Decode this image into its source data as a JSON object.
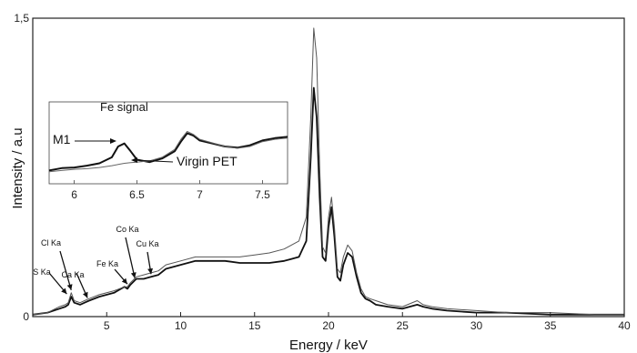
{
  "chart_data": {
    "type": "line",
    "xlabel": "Energy / keV",
    "ylabel": "Intensity / a.u",
    "xlim": [
      0,
      40
    ],
    "ylim": [
      0,
      1.5
    ],
    "x_ticks": [
      "5",
      "10",
      "15",
      "20",
      "25",
      "30",
      "35",
      "40"
    ],
    "y_ticks": [
      "0",
      "1,5"
    ],
    "grid": false,
    "series": [
      {
        "color": "#111111",
        "x": [
          0,
          1,
          1.8,
          2.2,
          2.4,
          2.6,
          2.8,
          3.2,
          3.5,
          3.8,
          4.5,
          5.5,
          6.2,
          6.4,
          6.6,
          7.0,
          7.5,
          8.0,
          8.5,
          9.0,
          10,
          11,
          12,
          13,
          14,
          15,
          16,
          17,
          17.5,
          18.0,
          18.5,
          18.8,
          19.0,
          19.2,
          19.4,
          19.6,
          19.8,
          20.0,
          20.2,
          20.4,
          20.6,
          20.8,
          21.0,
          21.3,
          21.6,
          21.9,
          22.2,
          22.5,
          22.8,
          23.2,
          24,
          25,
          26,
          26.4,
          27,
          28,
          30,
          32,
          35,
          38,
          40
        ],
        "y": [
          0.01,
          0.02,
          0.04,
          0.05,
          0.06,
          0.1,
          0.07,
          0.06,
          0.07,
          0.08,
          0.1,
          0.12,
          0.15,
          0.14,
          0.16,
          0.19,
          0.19,
          0.2,
          0.21,
          0.24,
          0.26,
          0.28,
          0.28,
          0.28,
          0.27,
          0.27,
          0.27,
          0.28,
          0.29,
          0.3,
          0.38,
          0.8,
          1.15,
          1.0,
          0.6,
          0.3,
          0.28,
          0.45,
          0.55,
          0.4,
          0.2,
          0.18,
          0.26,
          0.32,
          0.3,
          0.2,
          0.12,
          0.09,
          0.08,
          0.06,
          0.05,
          0.04,
          0.06,
          0.05,
          0.04,
          0.03,
          0.02,
          0.02,
          0.01,
          0.01,
          0.01
        ]
      },
      {
        "color": "#555555",
        "x": [
          0,
          1,
          1.8,
          2.2,
          2.4,
          2.6,
          2.8,
          3.2,
          3.5,
          3.8,
          4.5,
          5.5,
          6.2,
          6.4,
          6.6,
          7.0,
          7.5,
          8.0,
          8.5,
          9.0,
          10,
          11,
          12,
          13,
          14,
          15,
          16,
          17,
          17.5,
          18.0,
          18.5,
          18.8,
          19.0,
          19.2,
          19.4,
          19.6,
          19.8,
          20.0,
          20.2,
          20.4,
          20.6,
          20.8,
          21.0,
          21.3,
          21.6,
          21.9,
          22.2,
          22.5,
          22.8,
          23.2,
          24,
          25,
          26,
          26.4,
          27,
          28,
          30,
          32,
          35,
          38,
          40
        ],
        "y": [
          0.01,
          0.02,
          0.05,
          0.06,
          0.07,
          0.12,
          0.08,
          0.07,
          0.08,
          0.09,
          0.11,
          0.13,
          0.15,
          0.15,
          0.17,
          0.2,
          0.21,
          0.22,
          0.23,
          0.26,
          0.28,
          0.3,
          0.3,
          0.3,
          0.3,
          0.31,
          0.32,
          0.34,
          0.36,
          0.38,
          0.5,
          1.0,
          1.45,
          1.3,
          0.75,
          0.35,
          0.32,
          0.5,
          0.6,
          0.45,
          0.24,
          0.22,
          0.3,
          0.36,
          0.33,
          0.22,
          0.14,
          0.1,
          0.09,
          0.08,
          0.06,
          0.05,
          0.08,
          0.06,
          0.05,
          0.04,
          0.03,
          0.02,
          0.02,
          0.01,
          0.01
        ]
      }
    ],
    "annotations": [
      {
        "text": "S Ka",
        "x": 2.3,
        "y": 0.1
      },
      {
        "text": "Cl Ka",
        "x": 2.6,
        "y": 0.12
      },
      {
        "text": "Ca Ka",
        "x": 3.7,
        "y": 0.08
      },
      {
        "text": "Fe Ka",
        "x": 6.4,
        "y": 0.15
      },
      {
        "text": "Co Ka",
        "x": 6.9,
        "y": 0.18
      },
      {
        "text": "Cu Ka",
        "x": 8.0,
        "y": 0.2
      }
    ],
    "inset": {
      "title": "Fe signal",
      "xlim": [
        5.8,
        7.7
      ],
      "x_ticks": [
        "6",
        "6.5",
        "7",
        "7.5"
      ],
      "series": [
        {
          "name": "M1",
          "x": [
            5.8,
            5.9,
            6.0,
            6.1,
            6.2,
            6.3,
            6.35,
            6.4,
            6.45,
            6.5,
            6.6,
            6.7,
            6.8,
            6.85,
            6.9,
            6.95,
            7.0,
            7.1,
            7.2,
            7.3,
            7.4,
            7.5,
            7.6,
            7.7
          ],
          "y": [
            0.1,
            0.14,
            0.15,
            0.18,
            0.22,
            0.32,
            0.5,
            0.55,
            0.42,
            0.28,
            0.24,
            0.3,
            0.42,
            0.58,
            0.72,
            0.68,
            0.6,
            0.55,
            0.5,
            0.48,
            0.52,
            0.6,
            0.64,
            0.66
          ]
        },
        {
          "name": "Virgin PET",
          "x": [
            5.8,
            5.9,
            6.0,
            6.1,
            6.2,
            6.3,
            6.35,
            6.4,
            6.45,
            6.5,
            6.6,
            6.7,
            6.8,
            6.85,
            6.9,
            6.95,
            7.0,
            7.1,
            7.2,
            7.3,
            7.4,
            7.5,
            7.6,
            7.7
          ],
          "y": [
            0.08,
            0.1,
            0.12,
            0.13,
            0.15,
            0.18,
            0.2,
            0.22,
            0.23,
            0.24,
            0.26,
            0.32,
            0.45,
            0.62,
            0.75,
            0.7,
            0.62,
            0.56,
            0.5,
            0.47,
            0.5,
            0.58,
            0.62,
            0.64
          ]
        }
      ]
    }
  }
}
